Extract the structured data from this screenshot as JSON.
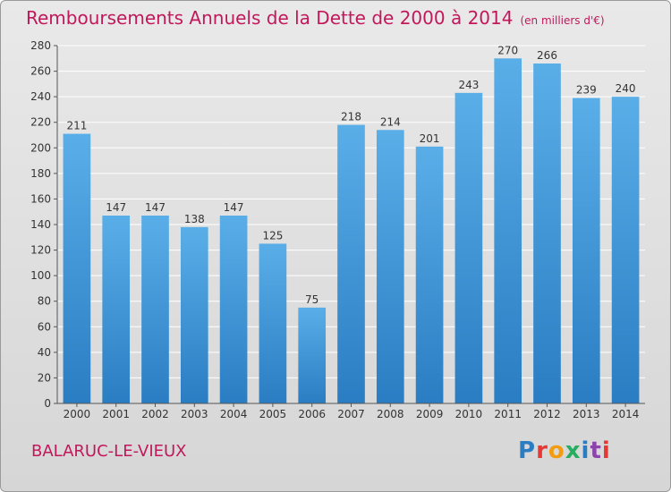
{
  "header": {
    "title": "Remboursements Annuels de la Dette de 2000 à 2014",
    "unit": "(en milliers d'€)"
  },
  "footer": {
    "commune": "BALARUC-LE-VIEUX",
    "logo": "Proxiti"
  },
  "colors": {
    "title": "#c2185b",
    "bar_top": "#5aaee8",
    "bar_bottom": "#2a7dc2",
    "grid": "#ffffff",
    "logo_letters": [
      "#2a7dc2",
      "#e53935",
      "#f39c12",
      "#27ae60",
      "#2a7dc2",
      "#8e44ad",
      "#e53935"
    ]
  },
  "chart_data": {
    "type": "bar",
    "title": "Remboursements Annuels de la Dette de 2000 à 2014",
    "categories": [
      "2000",
      "2001",
      "2002",
      "2003",
      "2004",
      "2005",
      "2006",
      "2007",
      "2008",
      "2009",
      "2010",
      "2011",
      "2012",
      "2013",
      "2014"
    ],
    "values": [
      211,
      147,
      147,
      138,
      147,
      125,
      75,
      218,
      214,
      201,
      243,
      270,
      266,
      239,
      240
    ],
    "ylim": [
      0,
      280
    ],
    "yticks": [
      0,
      20,
      40,
      60,
      80,
      100,
      120,
      140,
      160,
      180,
      200,
      220,
      240,
      260,
      280
    ],
    "grid": true,
    "legend": "none"
  }
}
